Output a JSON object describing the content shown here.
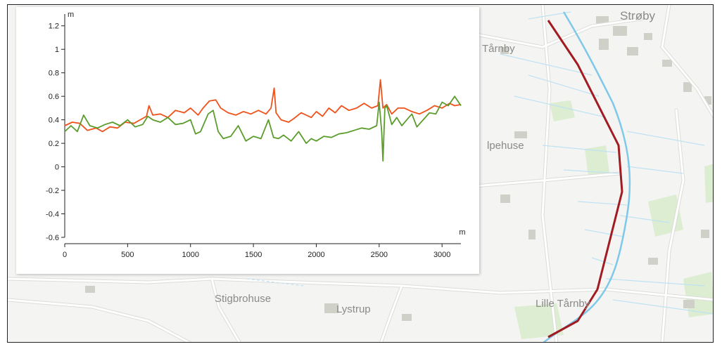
{
  "map": {
    "places": [
      {
        "name": "Strøby"
      },
      {
        "name": "Tårnby"
      },
      {
        "name": "lpehuse"
      },
      {
        "name": "Stigbrohuse"
      },
      {
        "name": "Lystrup"
      },
      {
        "name": "Lille Tårnby"
      }
    ],
    "colors": {
      "route": "#a01c22",
      "stream": "#7fc8ea",
      "road": "#ffffff",
      "land": "#f4f4f2",
      "green": "#d9ecd0",
      "building": "#cfd1c9"
    }
  },
  "chart_data": {
    "type": "line",
    "ylabel": "m",
    "xlabel": "m",
    "xlim": [
      0,
      3150
    ],
    "ylim": [
      -0.6,
      1.3
    ],
    "x_ticks": [
      0,
      500,
      1000,
      1500,
      2000,
      2500,
      3000
    ],
    "y_ticks": [
      1.2,
      1,
      0.8,
      0.6,
      0.4,
      0.2,
      0,
      -0.2,
      -0.4,
      -0.6
    ],
    "y_tick_labels": [
      "1.2",
      "1",
      "0.8",
      "0.6",
      "0.4",
      "0.2",
      "0",
      "-0.2",
      "-0.4",
      "-0.6"
    ],
    "series": [
      {
        "color": "#f0521b",
        "x": [
          0,
          60,
          120,
          180,
          250,
          300,
          360,
          420,
          480,
          550,
          600,
          650,
          670,
          700,
          760,
          820,
          880,
          950,
          1000,
          1060,
          1100,
          1150,
          1200,
          1240,
          1300,
          1360,
          1420,
          1480,
          1540,
          1600,
          1640,
          1665,
          1680,
          1720,
          1780,
          1820,
          1880,
          1920,
          1960,
          2000,
          2050,
          2100,
          2150,
          2200,
          2260,
          2320,
          2380,
          2440,
          2490,
          2510,
          2530,
          2560,
          2600,
          2650,
          2700,
          2760,
          2820,
          2880,
          2940,
          3000,
          3060,
          3100,
          3150
        ],
        "y": [
          0.35,
          0.38,
          0.37,
          0.31,
          0.33,
          0.3,
          0.34,
          0.33,
          0.38,
          0.37,
          0.4,
          0.43,
          0.52,
          0.44,
          0.45,
          0.42,
          0.48,
          0.46,
          0.5,
          0.44,
          0.5,
          0.56,
          0.57,
          0.5,
          0.46,
          0.44,
          0.47,
          0.45,
          0.48,
          0.45,
          0.5,
          0.67,
          0.46,
          0.4,
          0.38,
          0.41,
          0.46,
          0.44,
          0.42,
          0.47,
          0.43,
          0.5,
          0.46,
          0.52,
          0.48,
          0.5,
          0.54,
          0.5,
          0.52,
          0.74,
          0.5,
          0.53,
          0.45,
          0.5,
          0.5,
          0.47,
          0.45,
          0.48,
          0.52,
          0.5,
          0.54,
          0.52,
          0.53
        ]
      },
      {
        "color": "#5a9d2c",
        "x": [
          0,
          50,
          100,
          150,
          200,
          260,
          320,
          380,
          440,
          500,
          560,
          620,
          660,
          700,
          760,
          820,
          880,
          940,
          1000,
          1040,
          1080,
          1140,
          1180,
          1220,
          1260,
          1320,
          1380,
          1440,
          1500,
          1560,
          1620,
          1660,
          1700,
          1740,
          1800,
          1860,
          1920,
          1960,
          2000,
          2060,
          2120,
          2180,
          2240,
          2300,
          2360,
          2420,
          2480,
          2500,
          2520,
          2530,
          2545,
          2560,
          2600,
          2640,
          2680,
          2720,
          2760,
          2800,
          2850,
          2900,
          2950,
          3000,
          3050,
          3100,
          3150
        ],
        "y": [
          0.3,
          0.35,
          0.3,
          0.44,
          0.35,
          0.33,
          0.36,
          0.38,
          0.35,
          0.4,
          0.34,
          0.36,
          0.43,
          0.4,
          0.38,
          0.42,
          0.36,
          0.37,
          0.4,
          0.28,
          0.3,
          0.45,
          0.48,
          0.3,
          0.24,
          0.26,
          0.35,
          0.22,
          0.26,
          0.24,
          0.4,
          0.25,
          0.24,
          0.27,
          0.22,
          0.3,
          0.2,
          0.24,
          0.22,
          0.26,
          0.25,
          0.28,
          0.29,
          0.31,
          0.33,
          0.32,
          0.35,
          0.55,
          0.3,
          0.05,
          0.5,
          0.52,
          0.36,
          0.42,
          0.35,
          0.4,
          0.45,
          0.34,
          0.4,
          0.46,
          0.45,
          0.55,
          0.52,
          0.6,
          0.52
        ]
      }
    ]
  }
}
